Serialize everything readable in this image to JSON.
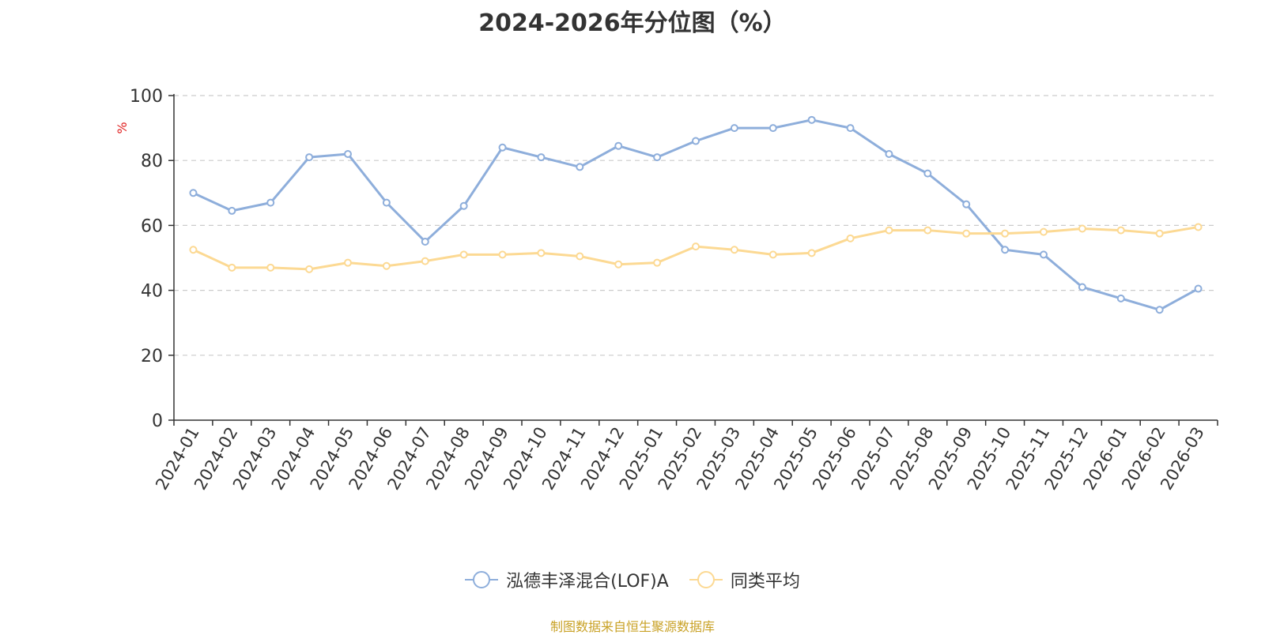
{
  "chart_data": {
    "type": "line",
    "title": "2024-2026年分位图（%）",
    "ylabel": "%",
    "ylim": [
      0,
      100
    ],
    "yticks": [
      0,
      20,
      40,
      60,
      80,
      100
    ],
    "grid": true,
    "legend_position": "bottom",
    "x": [
      "2024-01",
      "2024-02",
      "2024-03",
      "2024-04",
      "2024-05",
      "2024-06",
      "2024-07",
      "2024-08",
      "2024-09",
      "2024-10",
      "2024-11",
      "2024-12",
      "2025-01",
      "2025-02",
      "2025-03",
      "2025-04",
      "2025-05",
      "2025-06",
      "2025-07",
      "2025-08",
      "2025-09",
      "2025-10",
      "2025-11",
      "2025-12",
      "2026-01",
      "2026-02",
      "2026-03"
    ],
    "series": [
      {
        "name": "泓德丰泽混合(LOF)A",
        "color": "#8eaedb",
        "values": [
          70,
          64.5,
          67,
          81,
          82,
          67,
          55,
          66,
          84,
          81,
          78,
          84.5,
          81,
          86,
          90,
          90,
          92.5,
          90,
          82,
          76,
          66.5,
          52.5,
          51,
          41,
          37.5,
          34,
          40.5
        ]
      },
      {
        "name": "同类平均",
        "color": "#fcd993",
        "values": [
          52.5,
          47,
          47,
          46.5,
          48.5,
          47.5,
          49,
          51,
          51,
          51.5,
          50.5,
          48,
          48.5,
          53.5,
          52.5,
          51,
          51.5,
          56,
          58.5,
          58.5,
          57.5,
          57.5,
          58,
          59,
          58.5,
          57.5,
          59.5
        ]
      }
    ]
  },
  "source": "制图数据来自恒生聚源数据库"
}
